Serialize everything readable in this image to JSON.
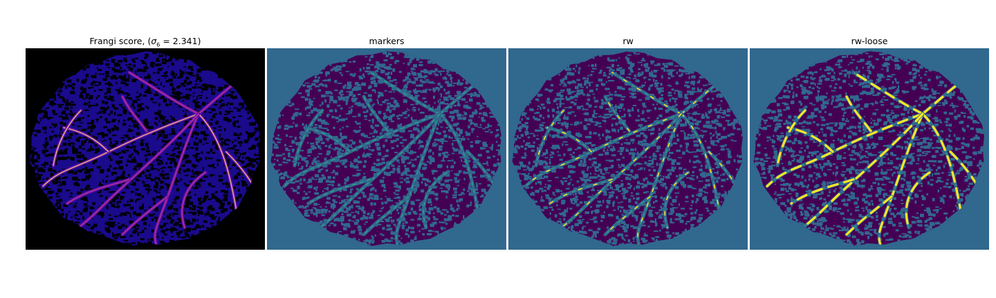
{
  "figure": {
    "panels": [
      {
        "id": "frangi",
        "title_prefix": "Frangi score, (",
        "title_symbol": "σ",
        "title_subscript": "6",
        "title_suffix": " = 2.341)"
      },
      {
        "id": "markers",
        "title": "markers"
      },
      {
        "id": "rw",
        "title": "rw"
      },
      {
        "id": "rw-loose",
        "title": "rw-loose"
      }
    ]
  },
  "colors": {
    "frangi_background": "#000000",
    "frangi_texture": "#1a0a8c",
    "frangi_vessel_low": "#6a11a8",
    "frangi_vessel_mid": "#c23a92",
    "frangi_vessel_high": "#f9d37a",
    "viridis_background": "#31688e",
    "viridis_tissue": "#440154",
    "viridis_marker": "#2fb47c",
    "viridis_segment": "#fde725"
  }
}
